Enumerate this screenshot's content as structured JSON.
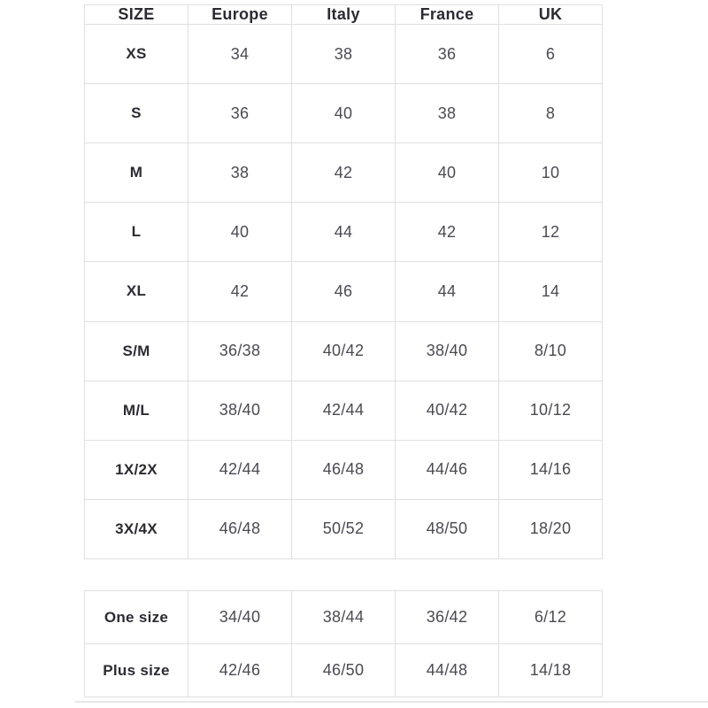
{
  "colors": {
    "border": "#e0e0e0",
    "heading_text": "#2b2b33",
    "value_text": "#4a4a53",
    "bottom_rule": "#e8e8e8",
    "background": "#ffffff"
  },
  "size_chart": {
    "columns": [
      "SIZE",
      "Europe",
      "Italy",
      "France",
      "UK"
    ],
    "standard_rows": [
      [
        "XS",
        "34",
        "38",
        "36",
        "6"
      ],
      [
        "S",
        "36",
        "40",
        "38",
        "8"
      ],
      [
        "M",
        "38",
        "42",
        "40",
        "10"
      ],
      [
        "L",
        "40",
        "44",
        "42",
        "12"
      ],
      [
        "XL",
        "42",
        "46",
        "44",
        "14"
      ],
      [
        "S/M",
        "36/38",
        "40/42",
        "38/40",
        "8/10"
      ],
      [
        "M/L",
        "38/40",
        "42/44",
        "40/42",
        "10/12"
      ],
      [
        "1X/2X",
        "42/44",
        "46/48",
        "44/46",
        "14/16"
      ],
      [
        "3X/4X",
        "46/48",
        "50/52",
        "48/50",
        "18/20"
      ]
    ],
    "special_rows": [
      [
        "One size",
        "34/40",
        "38/44",
        "36/42",
        "6/12"
      ],
      [
        "Plus size",
        "42/46",
        "46/50",
        "44/48",
        "14/18"
      ]
    ]
  }
}
